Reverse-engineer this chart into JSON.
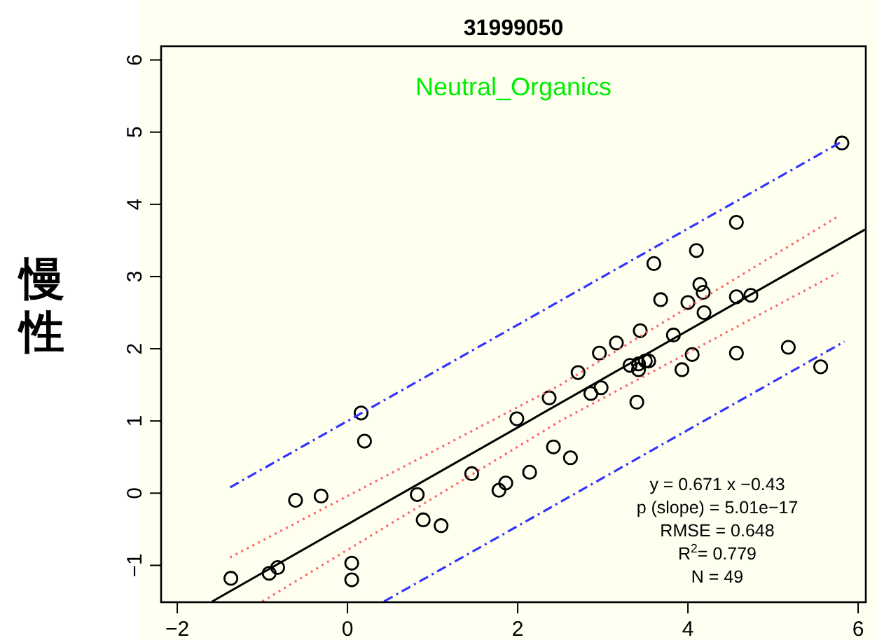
{
  "chart_data": {
    "type": "scatter",
    "title": "31999050",
    "ylabel": "慢性",
    "annotations": [
      "Neutral_Organics",
      "y = 0.671 x −0.43",
      "p (slope) = 5.01e−17",
      "RMSE =  0.648",
      "R$^{2}$= 0.779",
      "N = 49"
    ],
    "xlim": [
      -2.19,
      6.09
    ],
    "ylim": [
      -1.51,
      6.19
    ],
    "xticks": [
      {
        "value": -2,
        "label": "−2"
      },
      0,
      2,
      4,
      6
    ],
    "yticks": [
      {
        "value": -1,
        "label": "−1"
      },
      0,
      1,
      2,
      3,
      4,
      5,
      6
    ],
    "grid": false,
    "series": [
      {
        "type": "scatter",
        "marker": "circle",
        "color": "#000000",
        "x": [
          -1.37,
          -0.92,
          -0.82,
          -0.61,
          -0.31,
          0.16,
          0.2,
          0.05,
          0.05,
          0.82,
          0.89,
          1.1,
          1.46,
          1.78,
          1.86,
          3.6,
          4.1,
          3.68,
          4.0,
          4.14,
          4.18,
          4.19,
          4.57,
          4.74,
          3.44,
          3.16,
          2.96,
          2.71,
          2.37,
          2.86,
          2.98,
          1.99,
          2.42,
          2.62,
          2.14,
          3.83,
          3.32,
          3.42,
          3.42,
          3.5,
          3.54,
          3.4,
          3.93,
          4.05,
          4.57,
          5.18,
          5.56,
          4.57,
          5.81
        ],
        "values": [
          -1.18,
          -1.11,
          -1.03,
          -0.1,
          -0.04,
          1.11,
          0.72,
          -0.97,
          -1.2,
          -0.02,
          -0.37,
          -0.45,
          0.27,
          0.04,
          0.14,
          3.18,
          3.36,
          2.68,
          2.64,
          2.89,
          2.78,
          2.5,
          2.72,
          2.74,
          2.25,
          2.08,
          1.94,
          1.67,
          1.32,
          1.38,
          1.46,
          1.03,
          0.64,
          0.49,
          0.29,
          2.19,
          1.77,
          1.71,
          1.79,
          1.83,
          1.83,
          1.26,
          1.71,
          1.92,
          1.94,
          2.02,
          1.75,
          3.75,
          4.85
        ]
      },
      {
        "type": "line",
        "color": "#000000",
        "line_style": "solid",
        "marker": "none",
        "x": [
          -1.59,
          6.08
        ],
        "values": [
          -1.5,
          3.65
        ]
      },
      {
        "type": "line",
        "color": "#ff6666",
        "line_style": "dotted",
        "marker": "none",
        "x": [
          -1.38,
          2.5,
          5.76
        ],
        "values": [
          -0.89,
          1.5,
          3.83
        ]
      },
      {
        "type": "line",
        "color": "#ff6666",
        "line_style": "dotted",
        "marker": "none",
        "x": [
          -1.0,
          2.5,
          5.76
        ],
        "values": [
          -1.5,
          1.0,
          3.05
        ]
      },
      {
        "type": "line",
        "color": "#3333ff",
        "line_style": "dashed",
        "marker": "none",
        "x": [
          -1.38,
          5.81
        ],
        "values": [
          0.08,
          4.87
        ]
      },
      {
        "type": "line",
        "color": "#3333ff",
        "line_style": "dashed",
        "marker": "none",
        "x": [
          0.43,
          5.84
        ],
        "values": [
          -1.5,
          2.1
        ]
      }
    ]
  }
}
